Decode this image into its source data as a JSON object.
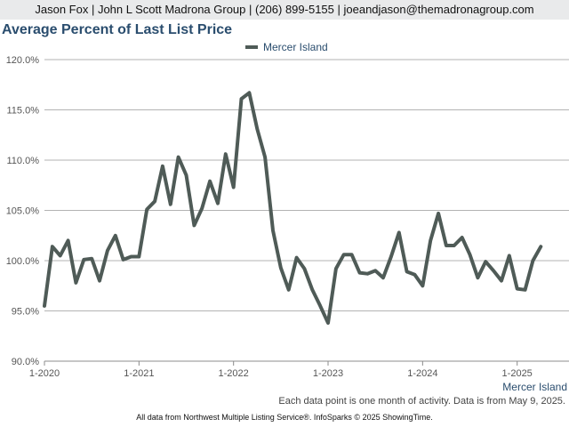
{
  "header": {
    "text": "Jason Fox | John L Scott Madrona Group | (206) 899-5155 | joeandjason@themadronagroup.com"
  },
  "footer": {
    "note": "Each data point is one month of activity. Data is from May 9, 2025.",
    "credit": "All data from Northwest Multiple Listing Service®. InfoSparks © 2025 ShowingTime."
  },
  "chart_data": {
    "type": "line",
    "title": "Average Percent of Last List Price",
    "xlabel": "",
    "ylabel": "",
    "ylim": [
      90,
      120
    ],
    "xlim": [
      "2020-01",
      "2025-06"
    ],
    "y_ticks": [
      "90.0%",
      "95.0%",
      "100.0%",
      "105.0%",
      "110.0%",
      "115.0%",
      "120.0%"
    ],
    "x_ticks": [
      "1-2020",
      "1-2021",
      "1-2022",
      "1-2023",
      "1-2024",
      "1-2025"
    ],
    "x_axis_label": "Mercer Island",
    "legend_position": "top-center",
    "grid": true,
    "line_color": "#4f5b57",
    "series": [
      {
        "name": "Mercer Island",
        "x": [
          "2020-01",
          "2020-02",
          "2020-03",
          "2020-04",
          "2020-05",
          "2020-06",
          "2020-07",
          "2020-08",
          "2020-09",
          "2020-10",
          "2020-11",
          "2020-12",
          "2021-01",
          "2021-02",
          "2021-03",
          "2021-04",
          "2021-05",
          "2021-06",
          "2021-07",
          "2021-08",
          "2021-09",
          "2021-10",
          "2021-11",
          "2021-12",
          "2022-01",
          "2022-02",
          "2022-03",
          "2022-04",
          "2022-05",
          "2022-06",
          "2022-07",
          "2022-08",
          "2022-09",
          "2022-10",
          "2022-11",
          "2022-12",
          "2023-01",
          "2023-02",
          "2023-03",
          "2023-04",
          "2023-05",
          "2023-06",
          "2023-07",
          "2023-08",
          "2023-09",
          "2023-10",
          "2023-11",
          "2023-12",
          "2024-01",
          "2024-02",
          "2024-03",
          "2024-04",
          "2024-05",
          "2024-06",
          "2024-07",
          "2024-08",
          "2024-09",
          "2024-10",
          "2024-11",
          "2024-12",
          "2025-01",
          "2025-02",
          "2025-03",
          "2025-04"
        ],
        "values": [
          95.5,
          101.4,
          100.5,
          102.0,
          97.8,
          100.1,
          100.2,
          98.0,
          101.0,
          102.5,
          100.1,
          100.4,
          100.4,
          105.1,
          105.9,
          109.4,
          105.6,
          110.3,
          108.5,
          103.5,
          105.2,
          107.9,
          105.7,
          110.6,
          107.3,
          116.1,
          116.7,
          113.1,
          110.3,
          103.0,
          99.3,
          97.1,
          100.3,
          99.2,
          97.1,
          95.5,
          93.8,
          99.2,
          100.6,
          100.6,
          98.8,
          98.7,
          99.0,
          98.3,
          100.4,
          102.8,
          98.9,
          98.6,
          97.5,
          102.0,
          104.7,
          101.5,
          101.5,
          102.3,
          100.6,
          98.3,
          99.9,
          99.0,
          98.0,
          100.5,
          97.2,
          97.1,
          100.0,
          101.4
        ]
      }
    ]
  }
}
